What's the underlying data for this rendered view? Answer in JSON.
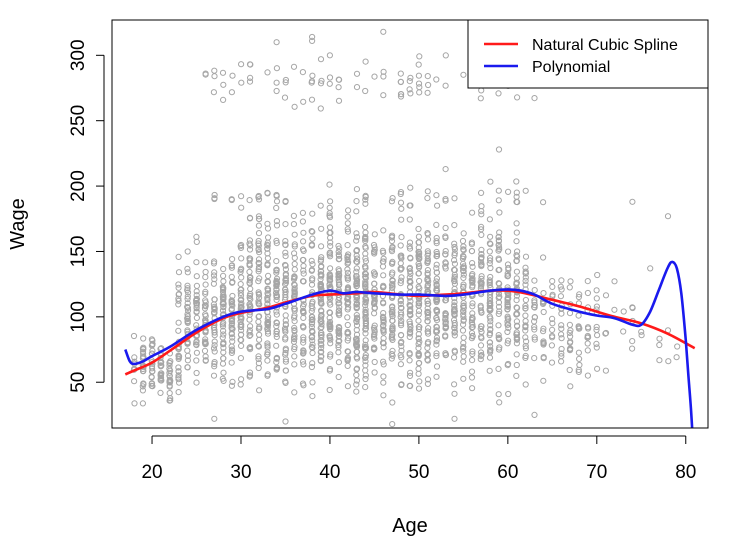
{
  "chart_data": {
    "type": "scatter",
    "title": "",
    "xlabel": "Age",
    "ylabel": "Wage",
    "xlim": [
      15.5,
      82.5
    ],
    "ylim": [
      15,
      327
    ],
    "xticks": [
      20,
      30,
      40,
      50,
      60,
      70,
      80
    ],
    "yticks": [
      50,
      100,
      150,
      200,
      250,
      300
    ],
    "legend": {
      "position": "top-right"
    },
    "colors": {
      "points": "#a6a6a6",
      "spline": "#ff1a1a",
      "polynomial": "#1a1aee"
    },
    "series": [
      {
        "name": "Natural Cubic Spline",
        "type": "line",
        "x": [
          17,
          18,
          20,
          22,
          25,
          28,
          30,
          33,
          35,
          38,
          40,
          43,
          45,
          48,
          50,
          53,
          55,
          58,
          60,
          62,
          65,
          68,
          70,
          72,
          75,
          78,
          81
        ],
        "y": [
          56,
          59,
          65,
          74,
          88,
          99,
          103,
          107,
          111,
          116,
          117,
          118,
          119,
          117,
          116,
          117,
          118,
          120,
          120,
          118,
          113,
          108,
          104,
          100,
          95,
          87,
          76
        ]
      },
      {
        "name": "Polynomial",
        "type": "line",
        "x": [
          17,
          17.5,
          18,
          19,
          20,
          22,
          25,
          28,
          30,
          33,
          35,
          38,
          40,
          41.5,
          43,
          45,
          48,
          50,
          53,
          55,
          58,
          60,
          61.5,
          63,
          65,
          68,
          70,
          72,
          74,
          75,
          76,
          77,
          78,
          78.5,
          79,
          79.5,
          80,
          80.3,
          80.6,
          80.8
        ],
        "y": [
          75,
          66,
          64,
          66,
          70,
          77,
          90,
          100,
          104,
          106,
          110,
          117,
          120,
          118,
          119,
          118,
          117,
          117,
          116,
          117,
          120,
          121,
          120,
          117,
          110,
          104,
          101,
          99,
          94,
          94,
          104,
          121,
          138,
          142,
          137,
          118,
          82,
          55,
          28,
          5
        ]
      },
      {
        "name": "",
        "type": "scatter",
        "clusters": [
          {
            "x": [
              18,
              80
            ],
            "y": [
              70,
              90
            ],
            "count": 10
          },
          {
            "x": [
              18,
              23
            ],
            "y": [
              25,
              95
            ],
            "count": 110
          },
          {
            "x": [
              23,
              30
            ],
            "y": [
              30,
              170
            ],
            "count": 260
          },
          {
            "x": [
              30,
              40
            ],
            "y": [
              25,
              200
            ],
            "count": 470
          },
          {
            "x": [
              40,
              52
            ],
            "y": [
              20,
              205
            ],
            "count": 620
          },
          {
            "x": [
              52,
              62
            ],
            "y": [
              22,
              200
            ],
            "count": 420
          },
          {
            "x": [
              62,
              70
            ],
            "y": [
              30,
              160
            ],
            "count": 110
          },
          {
            "x": [
              70,
              80
            ],
            "y": [
              35,
              155
            ],
            "count": 26
          },
          {
            "x": [
              26,
              64
            ],
            "y": [
              255,
              305
            ],
            "count": 90
          },
          {
            "x": [
              27,
              35
            ],
            "y": [
              185,
              200
            ],
            "count": 15
          },
          {
            "x": [
              40,
              65
            ],
            "y": [
              180,
              205
            ],
            "count": 30
          }
        ],
        "outliers": [
          [
            34,
            310
          ],
          [
            38,
            314
          ],
          [
            38,
            311
          ],
          [
            39,
            297
          ],
          [
            40,
            300
          ],
          [
            46,
            318
          ],
          [
            59,
            228
          ],
          [
            53,
            213
          ],
          [
            74,
            188
          ],
          [
            78,
            177
          ],
          [
            35,
            20
          ],
          [
            47,
            18
          ],
          [
            54,
            22
          ],
          [
            63,
            25
          ],
          [
            27,
            22
          ]
        ]
      }
    ]
  }
}
